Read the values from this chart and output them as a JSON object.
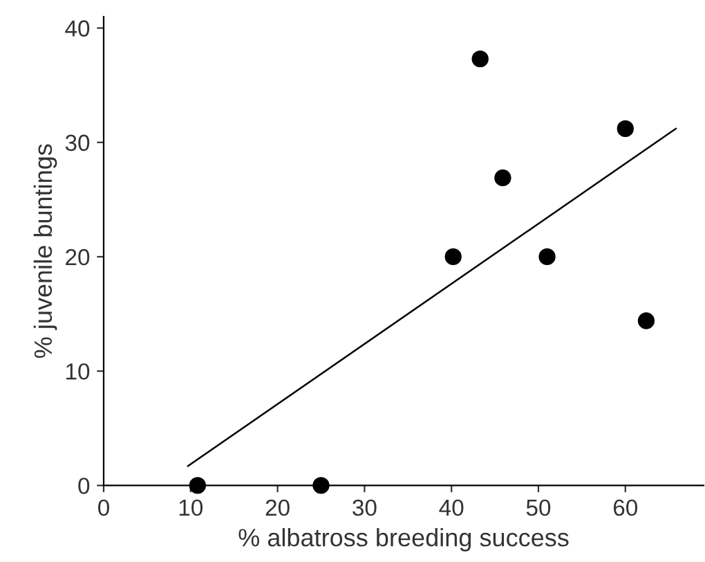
{
  "chart_data": {
    "type": "scatter",
    "xlabel": "% albatross breeding success",
    "ylabel": "% juvenile buntings",
    "series": [
      {
        "color": "#000000",
        "marker": "circle",
        "x": [
          10.8,
          25.0,
          40.2,
          43.3,
          45.9,
          51.0,
          60.0,
          62.4
        ],
        "values": [
          0,
          0,
          20,
          37.3,
          26.9,
          20,
          31.2,
          14.4
        ]
      },
      {
        "type": "line",
        "color": "#000000",
        "marker": "none",
        "x": [
          9.7,
          65.8
        ],
        "values": [
          1.7,
          31.2
        ]
      }
    ],
    "xlim": [
      0,
      69
    ],
    "ylim": [
      0,
      41
    ],
    "xticks": [
      0,
      10,
      20,
      30,
      40,
      50,
      60
    ],
    "yticks": [
      0,
      10,
      20,
      30,
      40
    ],
    "grid": false,
    "legend": false
  }
}
